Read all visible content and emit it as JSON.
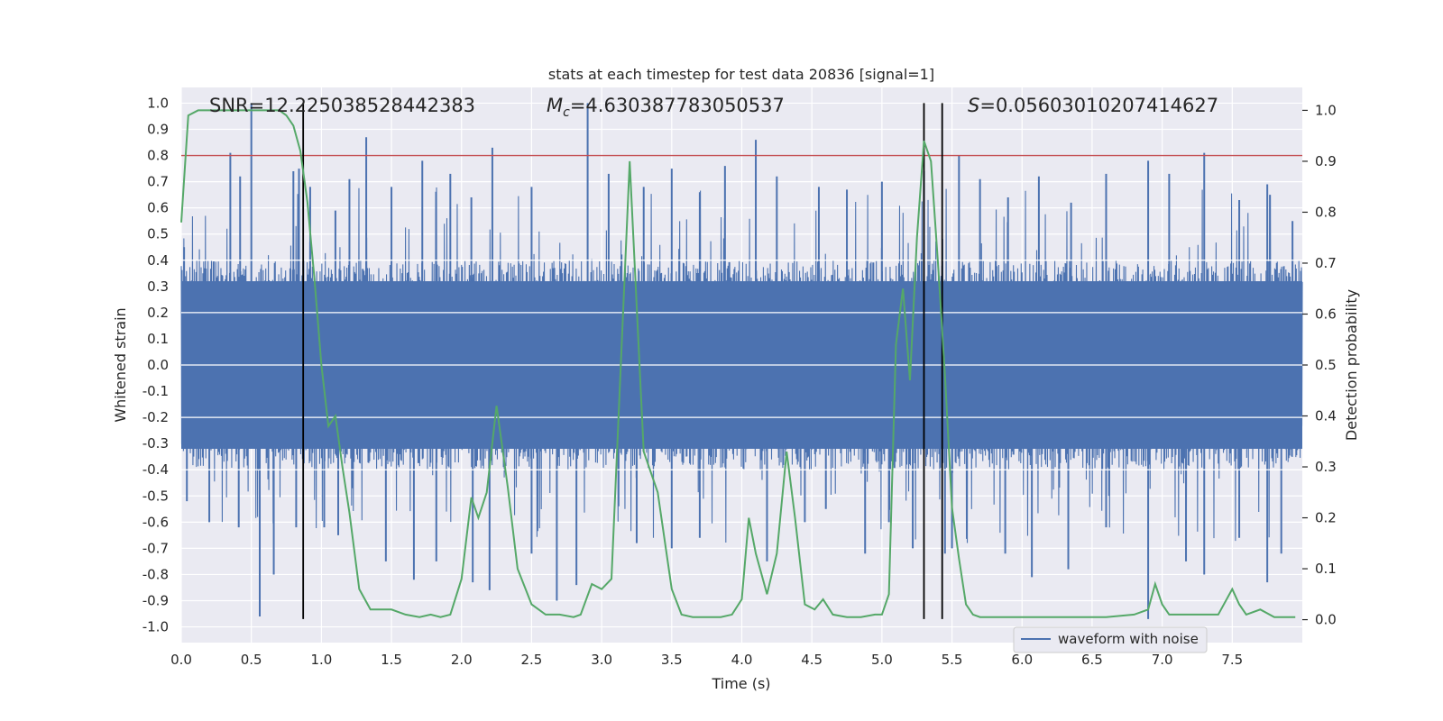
{
  "chart_data": {
    "type": "line",
    "title": "stats at each timestep for test data 20836 [signal=1]",
    "xlabel": "Time (s)",
    "ylabel_left": "Whitened strain",
    "ylabel_right": "Detection probability",
    "xlim": [
      0.0,
      8.0
    ],
    "ylim_left": [
      -1.06,
      1.06
    ],
    "ylim_right": [
      -0.045,
      1.045
    ],
    "x_ticks": [
      "0.0",
      "0.5",
      "1.0",
      "1.5",
      "2.0",
      "2.5",
      "3.0",
      "3.5",
      "4.0",
      "4.5",
      "5.0",
      "5.5",
      "6.0",
      "6.5",
      "7.0",
      "7.5"
    ],
    "y_ticks_left": [
      "1.0",
      "0.9",
      "0.8",
      "0.7",
      "0.6",
      "0.5",
      "0.4",
      "0.3",
      "0.2",
      "0.1",
      "0.0",
      "-0.1",
      "-0.2",
      "-0.3",
      "-0.4",
      "-0.5",
      "-0.6",
      "-0.7",
      "-0.8",
      "-0.9",
      "-1.0"
    ],
    "y_ticks_right": [
      "1.0",
      "0.9",
      "0.8",
      "0.7",
      "0.6",
      "0.5",
      "0.4",
      "0.3",
      "0.2",
      "0.1",
      "0.0"
    ],
    "annotations": {
      "snr": "SNR=12.225038528442383",
      "mc_symbol": "M",
      "mc_sub": "c",
      "mc_value": "=4.630387783050537",
      "s_symbol": "S",
      "s_value": "=0.05603010207414627"
    },
    "threshold_line": {
      "y_left": 0.8,
      "color": "#c44e52"
    },
    "vertical_lines": [
      0.87,
      5.3,
      5.43
    ],
    "legend": {
      "label": "waveform with noise",
      "placement": "lower-right"
    },
    "series": [
      {
        "name": "waveform with noise",
        "color": "#4c72b0",
        "axis": "left",
        "spikes_pos": [
          [
            0.02,
            0.45
          ],
          [
            0.35,
            0.81
          ],
          [
            0.42,
            0.72
          ],
          [
            0.5,
            1.0
          ],
          [
            0.8,
            0.74
          ],
          [
            0.84,
            0.75
          ],
          [
            0.92,
            0.68
          ],
          [
            1.1,
            0.59
          ],
          [
            1.2,
            0.71
          ],
          [
            1.32,
            0.87
          ],
          [
            1.5,
            0.68
          ],
          [
            1.72,
            0.78
          ],
          [
            1.92,
            0.73
          ],
          [
            2.07,
            0.64
          ],
          [
            2.22,
            0.83
          ],
          [
            2.5,
            0.68
          ],
          [
            2.9,
            1.0
          ],
          [
            3.05,
            0.73
          ],
          [
            3.3,
            0.68
          ],
          [
            3.5,
            0.75
          ],
          [
            3.7,
            0.66
          ],
          [
            3.88,
            0.76
          ],
          [
            4.1,
            0.86
          ],
          [
            4.25,
            0.72
          ],
          [
            4.55,
            0.68
          ],
          [
            4.75,
            0.67
          ],
          [
            5.0,
            0.7
          ],
          [
            5.3,
            0.74
          ],
          [
            5.55,
            0.8
          ],
          [
            5.7,
            0.71
          ],
          [
            5.9,
            0.64
          ],
          [
            6.12,
            0.72
          ],
          [
            6.35,
            0.62
          ],
          [
            6.6,
            0.73
          ],
          [
            6.9,
            0.78
          ],
          [
            7.05,
            0.73
          ],
          [
            7.3,
            0.81
          ],
          [
            7.55,
            0.63
          ],
          [
            7.75,
            0.69
          ],
          [
            7.93,
            0.55
          ]
        ],
        "spikes_neg": [
          [
            0.04,
            -0.52
          ],
          [
            0.2,
            -0.6
          ],
          [
            0.41,
            -0.62
          ],
          [
            0.56,
            -0.96
          ],
          [
            0.66,
            -0.8
          ],
          [
            0.82,
            -0.62
          ],
          [
            1.02,
            -0.62
          ],
          [
            1.12,
            -0.65
          ],
          [
            1.46,
            -0.75
          ],
          [
            1.66,
            -0.82
          ],
          [
            1.82,
            -0.75
          ],
          [
            2.08,
            -0.83
          ],
          [
            2.2,
            -0.86
          ],
          [
            2.5,
            -0.72
          ],
          [
            2.68,
            -0.9
          ],
          [
            2.82,
            -0.84
          ],
          [
            3.25,
            -0.68
          ],
          [
            3.5,
            -0.7
          ],
          [
            3.7,
            -0.66
          ],
          [
            4.18,
            -0.75
          ],
          [
            4.45,
            -0.6
          ],
          [
            4.6,
            -0.55
          ],
          [
            4.88,
            -0.72
          ],
          [
            5.05,
            -0.6
          ],
          [
            5.22,
            -0.7
          ],
          [
            5.45,
            -0.72
          ],
          [
            5.5,
            -0.7
          ],
          [
            5.88,
            -0.72
          ],
          [
            6.07,
            -0.81
          ],
          [
            6.33,
            -0.78
          ],
          [
            6.6,
            -0.62
          ],
          [
            6.9,
            -0.97
          ],
          [
            7.17,
            -0.75
          ],
          [
            7.3,
            -0.8
          ],
          [
            7.55,
            -0.66
          ],
          [
            7.75,
            -0.83
          ],
          [
            7.85,
            -0.72
          ]
        ],
        "envelope": 0.4
      },
      {
        "name": "detection probability",
        "color": "#55a868",
        "axis": "right",
        "x": [
          0.0,
          0.05,
          0.12,
          0.2,
          0.3,
          0.4,
          0.5,
          0.6,
          0.7,
          0.75,
          0.8,
          0.85,
          0.9,
          0.95,
          1.0,
          1.05,
          1.1,
          1.15,
          1.2,
          1.27,
          1.35,
          1.42,
          1.5,
          1.6,
          1.7,
          1.78,
          1.85,
          1.92,
          2.0,
          2.07,
          2.12,
          2.18,
          2.25,
          2.33,
          2.4,
          2.5,
          2.6,
          2.7,
          2.8,
          2.85,
          2.93,
          3.0,
          3.07,
          3.2,
          3.3,
          3.4,
          3.5,
          3.57,
          3.65,
          3.75,
          3.85,
          3.93,
          4.0,
          4.05,
          4.1,
          4.18,
          4.25,
          4.32,
          4.38,
          4.45,
          4.52,
          4.58,
          4.65,
          4.75,
          4.85,
          4.95,
          5.0,
          5.05,
          5.1,
          5.15,
          5.2,
          5.25,
          5.3,
          5.35,
          5.4,
          5.45,
          5.5,
          5.55,
          5.6,
          5.65,
          5.7,
          5.8,
          5.9,
          6.0,
          6.2,
          6.4,
          6.6,
          6.8,
          6.9,
          6.95,
          7.0,
          7.05,
          7.12,
          7.2,
          7.3,
          7.4,
          7.5,
          7.55,
          7.6,
          7.7,
          7.8,
          7.88,
          7.95
        ],
        "y": [
          0.78,
          0.99,
          1.0,
          1.0,
          1.0,
          1.0,
          1.0,
          1.0,
          1.0,
          0.99,
          0.97,
          0.92,
          0.82,
          0.67,
          0.5,
          0.38,
          0.4,
          0.3,
          0.21,
          0.06,
          0.02,
          0.02,
          0.02,
          0.01,
          0.005,
          0.01,
          0.005,
          0.01,
          0.08,
          0.24,
          0.2,
          0.25,
          0.42,
          0.26,
          0.1,
          0.03,
          0.01,
          0.01,
          0.005,
          0.01,
          0.07,
          0.06,
          0.08,
          0.9,
          0.33,
          0.25,
          0.06,
          0.01,
          0.005,
          0.005,
          0.005,
          0.01,
          0.04,
          0.2,
          0.13,
          0.05,
          0.13,
          0.33,
          0.2,
          0.03,
          0.02,
          0.04,
          0.01,
          0.005,
          0.005,
          0.01,
          0.01,
          0.05,
          0.54,
          0.65,
          0.47,
          0.75,
          0.94,
          0.9,
          0.7,
          0.48,
          0.22,
          0.12,
          0.03,
          0.01,
          0.005,
          0.005,
          0.005,
          0.005,
          0.005,
          0.005,
          0.005,
          0.01,
          0.02,
          0.07,
          0.03,
          0.01,
          0.01,
          0.01,
          0.01,
          0.01,
          0.06,
          0.03,
          0.01,
          0.02,
          0.005,
          0.005,
          0.005
        ]
      }
    ]
  }
}
